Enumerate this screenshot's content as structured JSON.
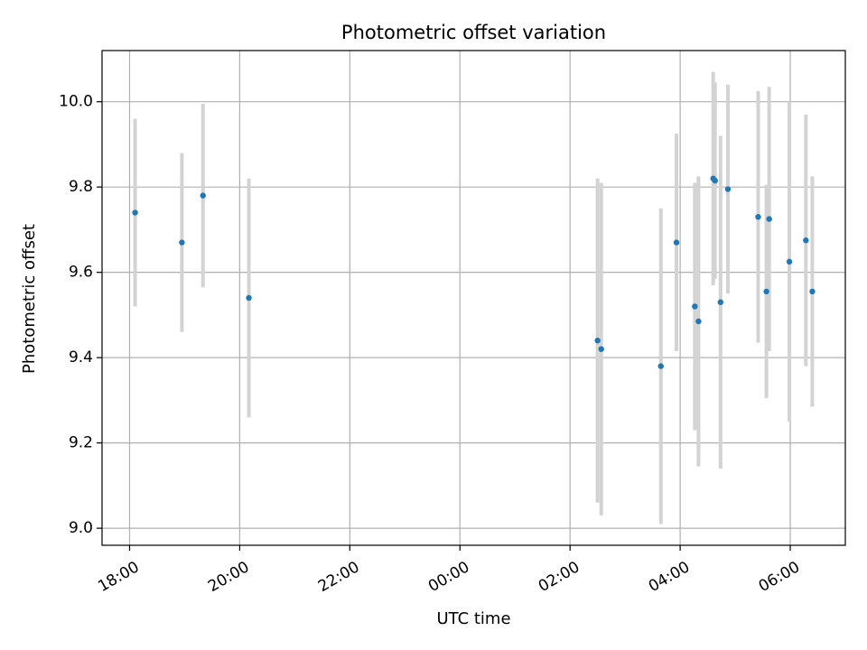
{
  "chart_data": {
    "type": "scatter",
    "title": "Photometric offset variation",
    "xlabel": "UTC time",
    "ylabel": "Photometric offset",
    "x_format": "HH:MM",
    "xlim": [
      "17:30",
      "07:00"
    ],
    "ylim": [
      8.96,
      10.12
    ],
    "x_ticks": [
      "18:00",
      "20:00",
      "22:00",
      "00:00",
      "02:00",
      "04:00",
      "06:00"
    ],
    "x_tick_hours": [
      18,
      20,
      22,
      24,
      26,
      28,
      30
    ],
    "y_ticks": [
      9.0,
      9.2,
      9.4,
      9.6,
      9.8,
      10.0
    ],
    "grid": true,
    "point_color": "#1f77b4",
    "errorbar_color": "#d3d3d3",
    "points": [
      {
        "time": "18:06",
        "y": 9.74,
        "err": 0.22
      },
      {
        "time": "18:57",
        "y": 9.67,
        "err": 0.21
      },
      {
        "time": "19:20",
        "y": 9.78,
        "err": 0.215
      },
      {
        "time": "20:10",
        "y": 9.54,
        "err": 0.28
      },
      {
        "time": "02:30",
        "y": 9.44,
        "err": 0.38
      },
      {
        "time": "02:34",
        "y": 9.42,
        "err": 0.39
      },
      {
        "time": "03:39",
        "y": 9.38,
        "err": 0.37
      },
      {
        "time": "03:56",
        "y": 9.67,
        "err": 0.255
      },
      {
        "time": "04:16",
        "y": 9.52,
        "err": 0.29
      },
      {
        "time": "04:20",
        "y": 9.485,
        "err": 0.34
      },
      {
        "time": "04:36",
        "y": 9.82,
        "err": 0.25
      },
      {
        "time": "04:38",
        "y": 9.815,
        "err": 0.23
      },
      {
        "time": "04:44",
        "y": 9.53,
        "err": 0.39
      },
      {
        "time": "04:52",
        "y": 9.795,
        "err": 0.245
      },
      {
        "time": "05:25",
        "y": 9.73,
        "err": 0.295
      },
      {
        "time": "05:34",
        "y": 9.555,
        "err": 0.25
      },
      {
        "time": "05:37",
        "y": 9.725,
        "err": 0.31
      },
      {
        "time": "05:59",
        "y": 9.625,
        "err": 0.375
      },
      {
        "time": "06:17",
        "y": 9.675,
        "err": 0.295
      },
      {
        "time": "06:24",
        "y": 9.555,
        "err": 0.27
      }
    ]
  }
}
